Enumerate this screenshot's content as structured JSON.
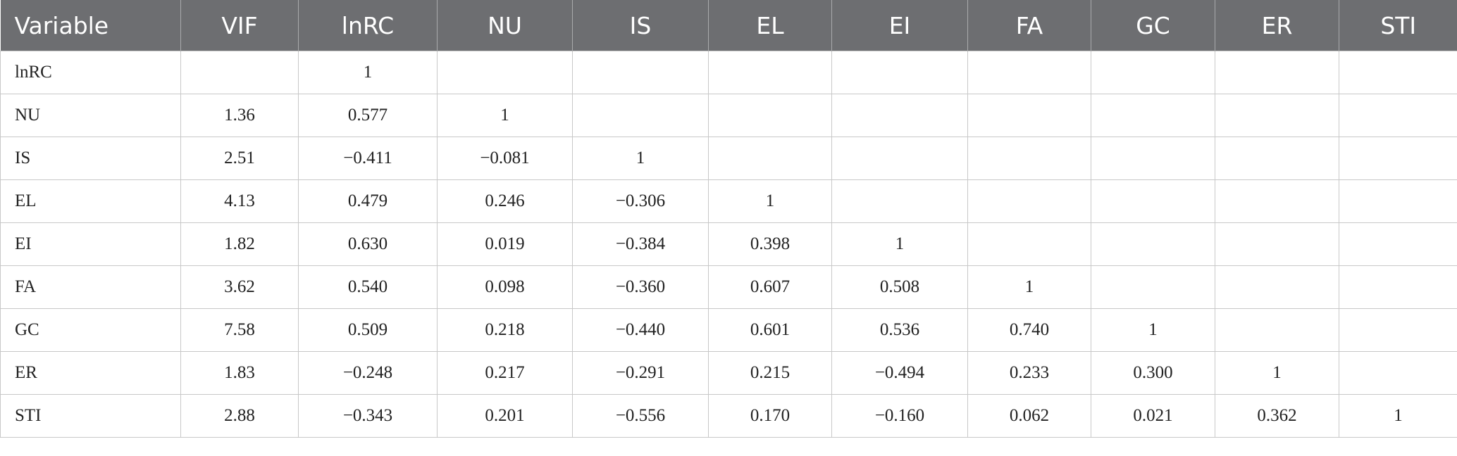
{
  "table": {
    "header": [
      "Variable",
      "VIF",
      "lnRC",
      "NU",
      "IS",
      "EL",
      "EI",
      "FA",
      "GC",
      "ER",
      "STI"
    ],
    "rows": [
      [
        "lnRC",
        null,
        "1",
        null,
        null,
        null,
        null,
        null,
        null,
        null,
        null
      ],
      [
        "NU",
        "1.36",
        "0.577",
        "1",
        null,
        null,
        null,
        null,
        null,
        null,
        null
      ],
      [
        "IS",
        "2.51",
        "−0.411",
        "−0.081",
        "1",
        null,
        null,
        null,
        null,
        null,
        null
      ],
      [
        "EL",
        "4.13",
        "0.479",
        "0.246",
        "−0.306",
        "1",
        null,
        null,
        null,
        null,
        null
      ],
      [
        "EI",
        "1.82",
        "0.630",
        "0.019",
        "−0.384",
        "0.398",
        "1",
        null,
        null,
        null,
        null
      ],
      [
        "FA",
        "3.62",
        "0.540",
        "0.098",
        "−0.360",
        "0.607",
        "0.508",
        "1",
        null,
        null,
        null
      ],
      [
        "GC",
        "7.58",
        "0.509",
        "0.218",
        "−0.440",
        "0.601",
        "0.536",
        "0.740",
        "1",
        null,
        null
      ],
      [
        "ER",
        "1.83",
        "−0.248",
        "0.217",
        "−0.291",
        "0.215",
        "−0.494",
        "0.233",
        "0.300",
        "1",
        null
      ],
      [
        "STI",
        "2.88",
        "−0.343",
        "0.201",
        "−0.556",
        "0.170",
        "−0.160",
        "0.062",
        "0.021",
        "0.362",
        "1"
      ]
    ]
  }
}
